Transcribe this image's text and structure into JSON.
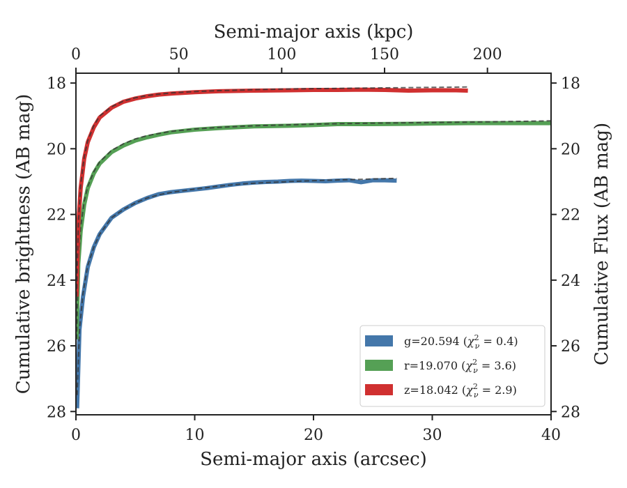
{
  "chart_data": {
    "type": "line",
    "xlabel": "Semi-major axis (arcsec)",
    "x2label": "Semi-major axis (kpc)",
    "ylabel": "Cumulative brightness (AB mag)",
    "y2label": "Cumulative Flux (AB mag)",
    "xlim": [
      0,
      40
    ],
    "ylim": [
      28.1,
      17.7
    ],
    "x2lim": [
      0,
      230.9
    ],
    "y_inverted": true,
    "grid": false,
    "legend_placement": "bottom-right",
    "x_ticks": [
      0,
      10,
      20,
      30,
      40
    ],
    "y_ticks": [
      18,
      20,
      22,
      24,
      26,
      28
    ],
    "x2_ticks": [
      0,
      50,
      100,
      150,
      200
    ],
    "x2_per_x": 5.773,
    "series": [
      {
        "name": "g=20.594",
        "legend_label": "g=20.594 (",
        "chi2": "0.4",
        "color": "#4477aa",
        "x": [
          0.1,
          0.3,
          0.6,
          1,
          1.5,
          2,
          3,
          4,
          5,
          6,
          7,
          8,
          9,
          10,
          11,
          12,
          13,
          14,
          15,
          16,
          17,
          18,
          19,
          20,
          21,
          22,
          23,
          24,
          25,
          26,
          27
        ],
        "y": [
          27.9,
          25.5,
          24.5,
          23.6,
          23.0,
          22.6,
          22.1,
          21.85,
          21.65,
          21.5,
          21.38,
          21.32,
          21.28,
          21.24,
          21.2,
          21.15,
          21.1,
          21.06,
          21.03,
          21.01,
          21.0,
          20.98,
          20.97,
          20.98,
          20.99,
          20.97,
          20.96,
          21.02,
          20.96,
          20.96,
          20.97
        ],
        "fit_x": [
          0.1,
          0.3,
          0.6,
          1,
          1.5,
          2,
          3,
          4,
          5,
          6,
          7,
          8,
          10,
          12,
          14,
          16,
          18,
          20,
          22,
          24,
          26,
          27
        ],
        "fit_y": [
          27.5,
          25.5,
          24.4,
          23.55,
          23.0,
          22.6,
          22.1,
          21.85,
          21.65,
          21.5,
          21.4,
          21.33,
          21.23,
          21.14,
          21.07,
          21.03,
          21.0,
          20.97,
          20.95,
          20.93,
          20.91,
          20.9
        ]
      },
      {
        "name": "r=19.070",
        "legend_label": "r=19.070 (",
        "chi2": "3.6",
        "color": "#55a055",
        "x": [
          0.05,
          0.2,
          0.4,
          0.7,
          1,
          1.5,
          2,
          3,
          4,
          5,
          6,
          7,
          8,
          10,
          12,
          15,
          18,
          20,
          22,
          25,
          28,
          30,
          33,
          35,
          37,
          40
        ],
        "y": [
          25.8,
          23.5,
          22.5,
          21.7,
          21.2,
          20.75,
          20.45,
          20.1,
          19.9,
          19.75,
          19.65,
          19.57,
          19.5,
          19.42,
          19.37,
          19.32,
          19.3,
          19.28,
          19.25,
          19.25,
          19.24,
          19.23,
          19.22,
          19.22,
          19.22,
          19.22
        ],
        "fit_x": [
          0.05,
          0.2,
          0.4,
          0.7,
          1,
          1.5,
          2,
          3,
          4,
          5,
          6,
          8,
          10,
          12,
          15,
          18,
          20,
          25,
          30,
          35,
          40
        ],
        "fit_y": [
          25.8,
          23.5,
          22.4,
          21.6,
          21.15,
          20.7,
          20.4,
          20.05,
          19.85,
          19.7,
          19.6,
          19.47,
          19.4,
          19.35,
          19.3,
          19.27,
          19.25,
          19.22,
          19.2,
          19.18,
          19.15
        ]
      },
      {
        "name": "z=18.042",
        "legend_label": "z=18.042 (",
        "chi2": "2.9",
        "color": "#d03030",
        "x": [
          0.05,
          0.2,
          0.4,
          0.7,
          1,
          1.5,
          2,
          3,
          4,
          5,
          6,
          7,
          8,
          10,
          12,
          15,
          18,
          20,
          22,
          24,
          26,
          28,
          30,
          32,
          33
        ],
        "y": [
          24.5,
          22.3,
          21.2,
          20.3,
          19.8,
          19.35,
          19.05,
          18.75,
          18.57,
          18.47,
          18.4,
          18.35,
          18.32,
          18.28,
          18.25,
          18.23,
          18.22,
          18.21,
          18.21,
          18.2,
          18.21,
          18.23,
          18.22,
          18.22,
          18.23
        ],
        "fit_x": [
          0.05,
          0.2,
          0.4,
          0.7,
          1,
          1.5,
          2,
          3,
          4,
          5,
          6,
          8,
          10,
          12,
          15,
          18,
          20,
          25,
          30,
          33
        ],
        "fit_y": [
          24.5,
          22.3,
          21.1,
          20.25,
          19.75,
          19.3,
          19.0,
          18.72,
          18.55,
          18.45,
          18.38,
          18.3,
          18.26,
          18.23,
          18.2,
          18.18,
          18.17,
          18.15,
          18.13,
          18.12
        ]
      }
    ]
  }
}
